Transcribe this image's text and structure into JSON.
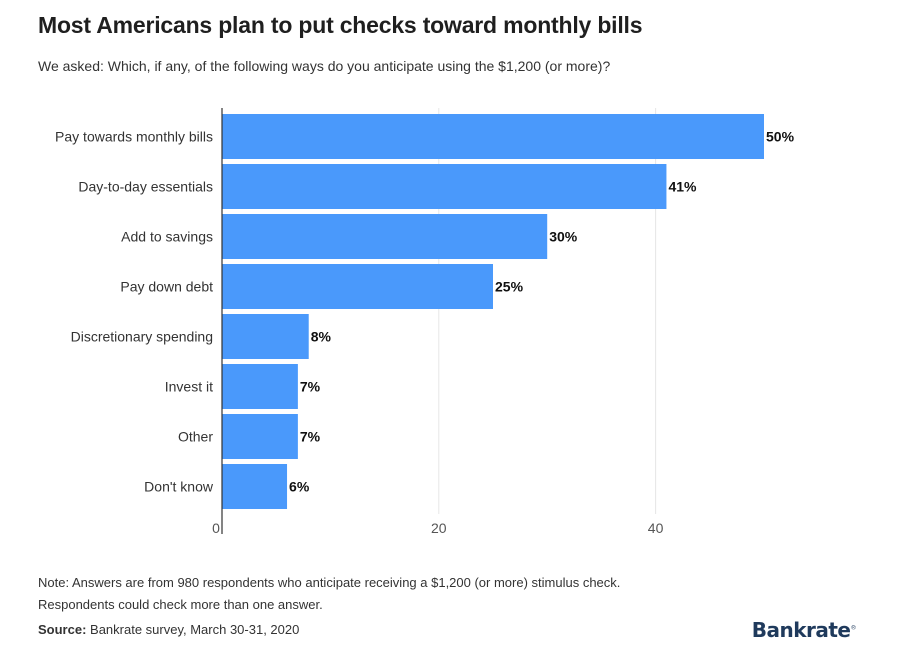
{
  "title": "Most Americans plan to put checks toward monthly bills",
  "subtitle": "We asked: Which, if any, of the following ways do you anticipate using the $1,200 (or more)?",
  "note_line1": "Note: Answers are from 980 respondents who anticipate receiving a $1,200 (or more) stimulus check.",
  "note_line2": "Respondents could check more than one answer.",
  "source_label": "Source:",
  "source_text": " Bankrate survey, March 30-31, 2020",
  "brand": "Bankrate",
  "colors": {
    "bar": "#4a99fb",
    "grid": "#e6e6e6",
    "axis": "#333333"
  },
  "chart_data": {
    "type": "bar",
    "orientation": "horizontal",
    "categories": [
      "Pay towards monthly bills",
      "Day-to-day essentials",
      "Add to savings",
      "Pay down debt",
      "Discretionary spending",
      "Invest it",
      "Other",
      "Don't know"
    ],
    "values": [
      50,
      41,
      30,
      25,
      8,
      7,
      7,
      6
    ],
    "value_labels": [
      "50%",
      "41%",
      "30%",
      "25%",
      "8%",
      "7%",
      "7%",
      "6%"
    ],
    "xticks": [
      0,
      20,
      40
    ],
    "xlim": [
      0,
      50
    ],
    "grid": true
  }
}
